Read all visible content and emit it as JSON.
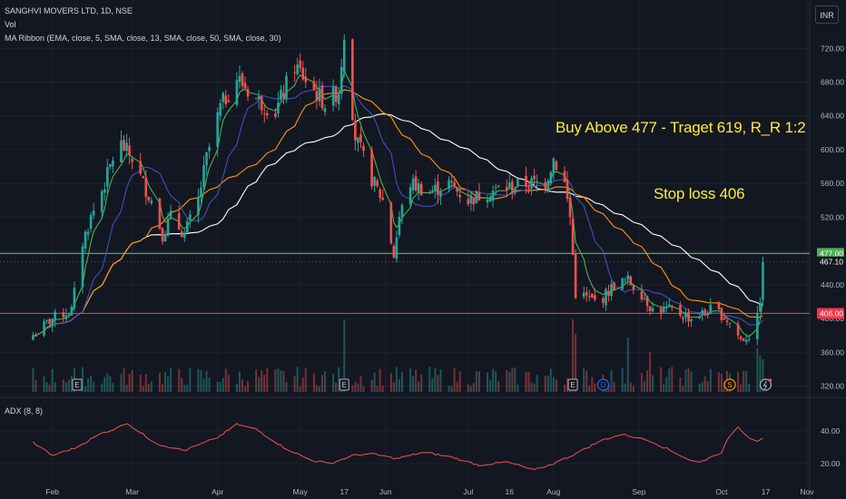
{
  "header": {
    "symbol_line": "SANGHVI MOVERS LTD, 1D, NSE",
    "volume_label": "Vol",
    "ribbon_label": "MA Ribbon (EMA, close, 5, SMA, close, 13, SMA, close, 50, SMA, close, 30)",
    "adx_label": "ADX (8, 8)",
    "currency_button": "INR"
  },
  "annotations": {
    "buy_text": "Buy Above 477 - Traget 619, R_R 1:2",
    "stop_text": "Stop loss 406"
  },
  "colors": {
    "background": "#131722",
    "up": "#26a69a",
    "down": "#ef5350",
    "ema5": "#4caf50",
    "sma13": "#3f51b5",
    "sma50": "#ffffff",
    "sma30": "#ff9800",
    "line_477": "#4caf50",
    "line_406": "#f23645",
    "adx": "#ef5350",
    "annotation": "#ffeb3b"
  },
  "chart_data": {
    "type": "candlestick",
    "price_axis": {
      "ticks": [
        "720.00",
        "680.00",
        "640.00",
        "600.00",
        "560.00",
        "520.00",
        "480.00",
        "440.00",
        "400.00",
        "360.00",
        "320.00"
      ],
      "range": [
        313,
        745
      ]
    },
    "adx_axis": {
      "ticks": [
        "40.00",
        "20.00"
      ],
      "range": [
        5,
        55
      ]
    },
    "time_axis": [
      "Feb",
      "Mar",
      "Apr",
      "May",
      "17",
      "Jun",
      "Jul",
      "16",
      "Aug",
      "Sep",
      "Oct",
      "17",
      "Nov"
    ],
    "price_labels": [
      {
        "text": "477.00",
        "value": 477,
        "color": "#4caf50"
      },
      {
        "text": "467.10",
        "value": 467.1,
        "color": "#131722"
      },
      {
        "text": "406.00",
        "value": 406,
        "color": "#f23645"
      }
    ],
    "horizontal_lines": [
      {
        "value": 477,
        "color": "#4caf50"
      },
      {
        "value": 406,
        "color": "#f23645"
      }
    ],
    "event_markers": [
      {
        "symbol": "E",
        "date": "2024-02-10"
      },
      {
        "symbol": "E",
        "date": "2024-05-17"
      },
      {
        "symbol": "E",
        "date": "2024-08-08"
      },
      {
        "symbol": "D",
        "date": "2024-08-19"
      },
      {
        "symbol": "S",
        "date": "2024-10-04"
      }
    ],
    "series": [
      {
        "name": "Price",
        "key_points": [
          [
            "2024-01-25",
            380
          ],
          [
            "2024-02-01",
            400
          ],
          [
            "2024-02-08",
            410
          ],
          [
            "2024-02-12",
            490
          ],
          [
            "2024-02-15",
            520
          ],
          [
            "2024-02-20",
            560
          ],
          [
            "2024-02-25",
            610
          ],
          [
            "2024-03-01",
            590
          ],
          [
            "2024-03-05",
            560
          ],
          [
            "2024-03-08",
            540
          ],
          [
            "2024-03-12",
            500
          ],
          [
            "2024-03-15",
            520
          ],
          [
            "2024-03-20",
            500
          ],
          [
            "2024-03-25",
            540
          ],
          [
            "2024-03-28",
            590
          ],
          [
            "2024-04-02",
            650
          ],
          [
            "2024-04-08",
            685
          ],
          [
            "2024-04-15",
            660
          ],
          [
            "2024-04-22",
            645
          ],
          [
            "2024-04-29",
            700
          ],
          [
            "2024-05-06",
            670
          ],
          [
            "2024-05-10",
            655
          ],
          [
            "2024-05-15",
            670
          ],
          [
            "2024-05-17",
            740
          ],
          [
            "2024-05-21",
            615
          ],
          [
            "2024-05-27",
            565
          ],
          [
            "2024-05-31",
            540
          ],
          [
            "2024-06-04",
            475
          ],
          [
            "2024-06-06",
            520
          ],
          [
            "2024-06-10",
            560
          ],
          [
            "2024-06-17",
            550
          ],
          [
            "2024-06-24",
            560
          ],
          [
            "2024-07-01",
            540
          ],
          [
            "2024-07-08",
            550
          ],
          [
            "2024-07-15",
            555
          ],
          [
            "2024-07-22",
            560
          ],
          [
            "2024-07-29",
            560
          ],
          [
            "2024-08-01",
            590
          ],
          [
            "2024-08-05",
            560
          ],
          [
            "2024-08-07",
            520
          ],
          [
            "2024-08-09",
            430
          ],
          [
            "2024-08-13",
            425
          ],
          [
            "2024-08-16",
            420
          ],
          [
            "2024-08-19",
            425
          ],
          [
            "2024-08-23",
            440
          ],
          [
            "2024-08-28",
            445
          ],
          [
            "2024-09-02",
            430
          ],
          [
            "2024-09-06",
            410
          ],
          [
            "2024-09-13",
            410
          ],
          [
            "2024-09-20",
            400
          ],
          [
            "2024-09-27",
            410
          ],
          [
            "2024-10-01",
            405
          ],
          [
            "2024-10-04",
            395
          ],
          [
            "2024-10-08",
            375
          ],
          [
            "2024-10-11",
            380
          ],
          [
            "2024-10-14",
            400
          ],
          [
            "2024-10-15",
            425
          ],
          [
            "2024-10-16",
            467
          ]
        ]
      }
    ],
    "adx_key_points": [
      [
        "2024-01-25",
        33
      ],
      [
        "2024-02-01",
        25
      ],
      [
        "2024-02-10",
        30
      ],
      [
        "2024-02-18",
        38
      ],
      [
        "2024-02-25",
        42
      ],
      [
        "2024-02-28",
        45
      ],
      [
        "2024-03-03",
        40
      ],
      [
        "2024-03-10",
        32
      ],
      [
        "2024-03-20",
        28
      ],
      [
        "2024-04-01",
        36
      ],
      [
        "2024-04-08",
        44
      ],
      [
        "2024-04-15",
        41
      ],
      [
        "2024-04-25",
        30
      ],
      [
        "2024-05-05",
        22
      ],
      [
        "2024-05-12",
        20
      ],
      [
        "2024-05-20",
        25
      ],
      [
        "2024-05-27",
        26
      ],
      [
        "2024-06-05",
        23
      ],
      [
        "2024-06-15",
        27
      ],
      [
        "2024-06-25",
        24
      ],
      [
        "2024-07-05",
        19
      ],
      [
        "2024-07-15",
        21
      ],
      [
        "2024-07-25",
        16
      ],
      [
        "2024-08-01",
        20
      ],
      [
        "2024-08-09",
        26
      ],
      [
        "2024-08-18",
        34
      ],
      [
        "2024-08-26",
        38
      ],
      [
        "2024-09-05",
        34
      ],
      [
        "2024-09-15",
        26
      ],
      [
        "2024-09-22",
        20
      ],
      [
        "2024-10-01",
        27
      ],
      [
        "2024-10-06",
        44
      ],
      [
        "2024-10-11",
        36
      ],
      [
        "2024-10-14",
        34
      ],
      [
        "2024-10-17",
        37
      ]
    ],
    "volume_spikes": [
      [
        "2024-02-10",
        1.0
      ],
      [
        "2024-05-17",
        1.0
      ],
      [
        "2024-08-08",
        1.0
      ],
      [
        "2024-08-09",
        0.8
      ],
      [
        "2024-05-19",
        0.5
      ],
      [
        "2024-08-28",
        0.75
      ],
      [
        "2024-09-05",
        0.55
      ],
      [
        "2024-10-14",
        0.6
      ],
      [
        "2024-10-15",
        0.5
      ],
      [
        "2024-10-16",
        0.45
      ]
    ]
  }
}
